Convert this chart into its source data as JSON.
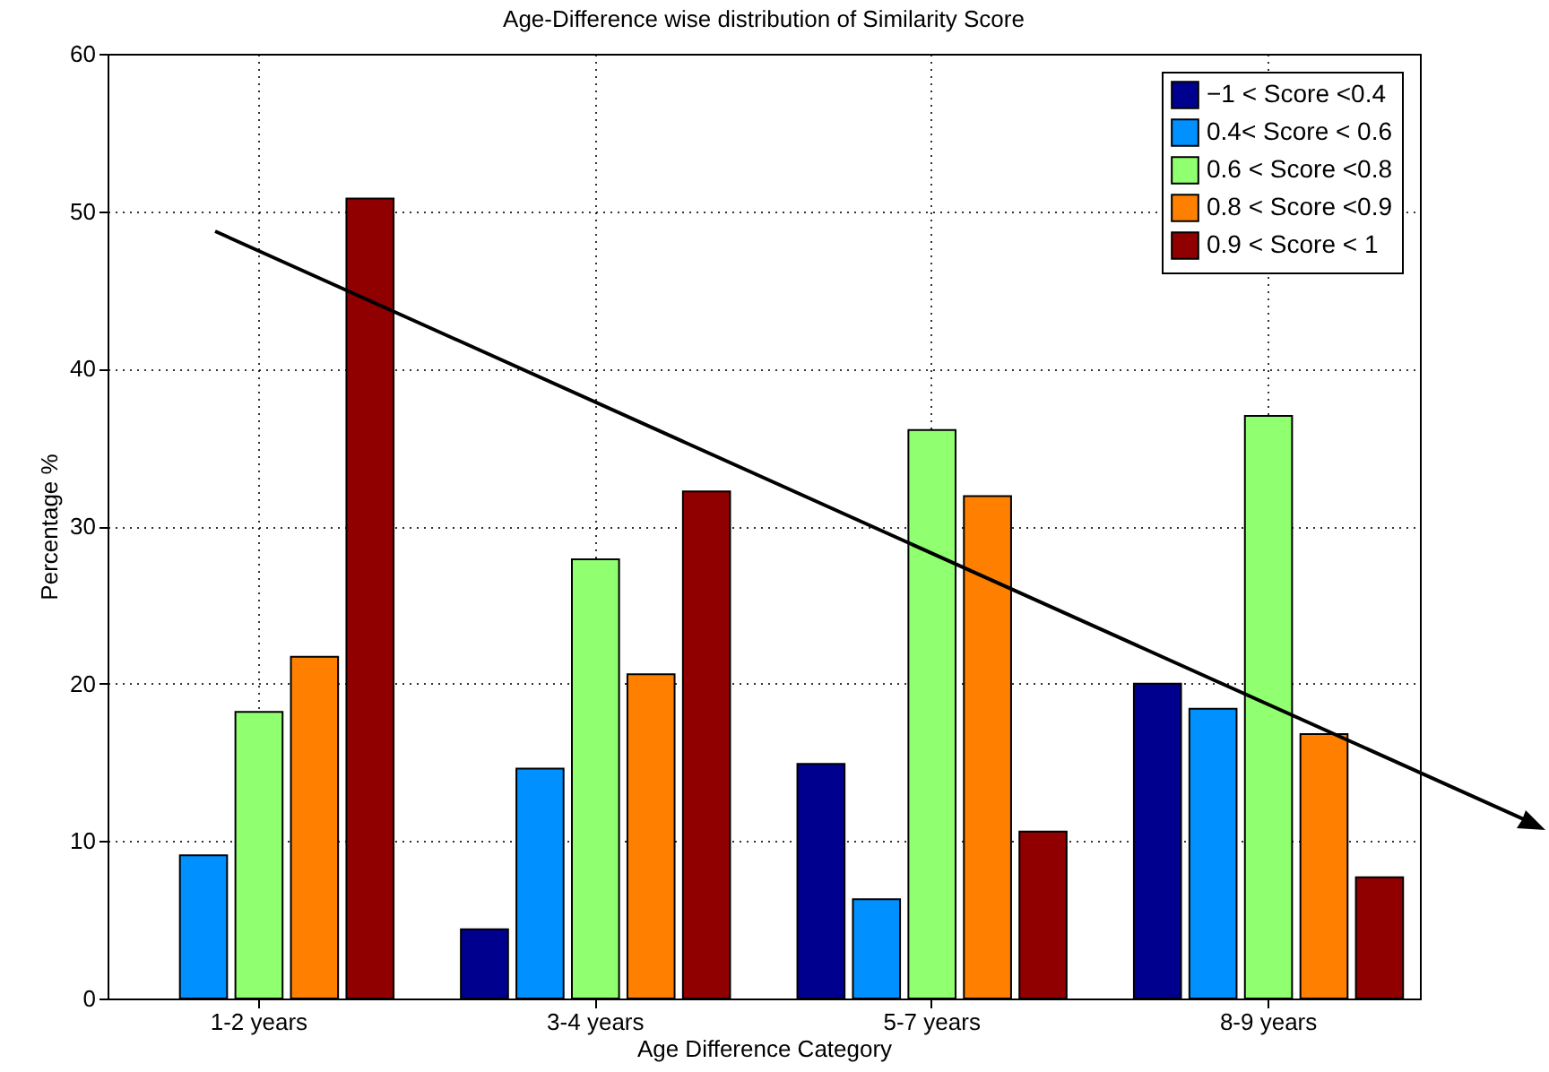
{
  "chart_data": {
    "type": "bar",
    "title": "Age-Difference wise distribution of Similarity Score",
    "xlabel": "Age Difference Category",
    "ylabel": "Percentage %",
    "categories": [
      "1-2 years",
      "3-4 years",
      "5-7 years",
      "8-9 years"
    ],
    "series": [
      {
        "name": "−1 < Score <0.4",
        "color": "#00008f",
        "values": [
          null,
          4.4,
          14.9,
          20.0
        ]
      },
      {
        "name": "0.4< Score < 0.6",
        "color": "#0090ff",
        "values": [
          9.1,
          14.6,
          6.3,
          18.4
        ]
      },
      {
        "name": "0.6 < Score <0.8",
        "color": "#90ff70",
        "values": [
          18.2,
          27.9,
          36.1,
          37.0
        ]
      },
      {
        "name": "0.8 < Score <0.9",
        "color": "#ff8000",
        "values": [
          21.7,
          20.6,
          31.9,
          16.8
        ]
      },
      {
        "name": "0.9 < Score < 1",
        "color": "#900000",
        "values": [
          50.8,
          32.2,
          10.6,
          7.7
        ]
      }
    ],
    "ylim": [
      0,
      60
    ],
    "yticks": [
      0,
      10,
      20,
      30,
      40,
      50,
      60
    ],
    "grid": true,
    "legend": "top right"
  }
}
